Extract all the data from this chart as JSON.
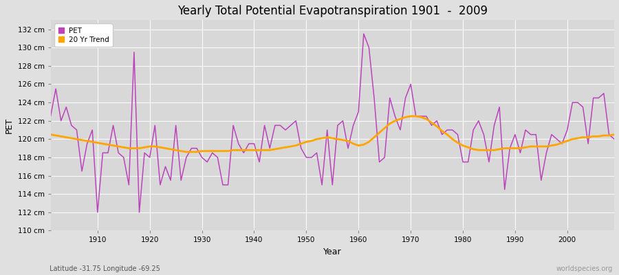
{
  "title": "Yearly Total Potential Evapotranspiration 1901  -  2009",
  "xlabel": "Year",
  "ylabel": "PET",
  "subtitle": "Latitude -31.75 Longitude -69.25",
  "watermark": "worldspecies.org",
  "pet_color": "#BB44BB",
  "trend_color": "#FFA500",
  "fig_bg_color": "#E0E0E0",
  "plot_bg_color": "#D8D8D8",
  "ylim": [
    110,
    133
  ],
  "yticks": [
    110,
    112,
    114,
    116,
    118,
    120,
    122,
    124,
    126,
    128,
    130,
    132
  ],
  "xticks": [
    1910,
    1920,
    1930,
    1940,
    1950,
    1960,
    1970,
    1980,
    1990,
    2000
  ],
  "years": [
    1901,
    1902,
    1903,
    1904,
    1905,
    1906,
    1907,
    1908,
    1909,
    1910,
    1911,
    1912,
    1913,
    1914,
    1915,
    1916,
    1917,
    1918,
    1919,
    1920,
    1921,
    1922,
    1923,
    1924,
    1925,
    1926,
    1927,
    1928,
    1929,
    1930,
    1931,
    1932,
    1933,
    1934,
    1935,
    1936,
    1937,
    1938,
    1939,
    1940,
    1941,
    1942,
    1943,
    1944,
    1945,
    1946,
    1947,
    1948,
    1949,
    1950,
    1951,
    1952,
    1953,
    1954,
    1955,
    1956,
    1957,
    1958,
    1959,
    1960,
    1961,
    1962,
    1963,
    1964,
    1965,
    1966,
    1967,
    1968,
    1969,
    1970,
    1971,
    1972,
    1973,
    1974,
    1975,
    1976,
    1977,
    1978,
    1979,
    1980,
    1981,
    1982,
    1983,
    1984,
    1985,
    1986,
    1987,
    1988,
    1989,
    1990,
    1991,
    1992,
    1993,
    1994,
    1995,
    1996,
    1997,
    1998,
    1999,
    2000,
    2001,
    2002,
    2003,
    2004,
    2005,
    2006,
    2007,
    2008,
    2009
  ],
  "pet": [
    122.5,
    125.5,
    122.0,
    123.5,
    121.5,
    121.0,
    116.5,
    119.5,
    121.0,
    112.0,
    118.5,
    118.5,
    121.5,
    118.5,
    118.0,
    115.0,
    129.5,
    112.0,
    118.5,
    118.0,
    121.5,
    115.0,
    117.0,
    115.5,
    121.5,
    115.5,
    118.0,
    119.0,
    119.0,
    118.0,
    117.5,
    118.5,
    118.0,
    115.0,
    115.0,
    121.5,
    119.5,
    118.5,
    119.5,
    119.5,
    117.5,
    121.5,
    119.0,
    121.5,
    121.5,
    121.0,
    121.5,
    122.0,
    119.0,
    118.0,
    118.0,
    118.5,
    115.0,
    121.0,
    115.0,
    121.5,
    122.0,
    119.0,
    121.5,
    123.0,
    131.5,
    130.0,
    124.5,
    117.5,
    118.0,
    124.5,
    122.5,
    121.0,
    124.5,
    126.0,
    122.5,
    122.5,
    122.5,
    121.5,
    122.0,
    120.5,
    121.0,
    121.0,
    120.5,
    117.5,
    117.5,
    121.0,
    122.0,
    120.5,
    117.5,
    121.5,
    123.5,
    114.5,
    119.0,
    120.5,
    118.5,
    121.0,
    120.5,
    120.5,
    115.5,
    118.5,
    120.5,
    120.0,
    119.5,
    121.0,
    124.0,
    124.0,
    123.5,
    119.5,
    124.5,
    124.5,
    125.0,
    120.5,
    120.0
  ],
  "trend": [
    120.5,
    120.4,
    120.3,
    120.2,
    120.1,
    120.0,
    119.9,
    119.8,
    119.7,
    119.6,
    119.5,
    119.4,
    119.3,
    119.2,
    119.1,
    119.0,
    119.0,
    119.0,
    119.1,
    119.2,
    119.2,
    119.1,
    119.0,
    118.9,
    118.8,
    118.7,
    118.6,
    118.6,
    118.6,
    118.7,
    118.7,
    118.7,
    118.7,
    118.7,
    118.7,
    118.8,
    118.8,
    118.8,
    118.8,
    118.8,
    118.8,
    118.8,
    118.8,
    118.9,
    119.0,
    119.1,
    119.2,
    119.3,
    119.5,
    119.7,
    119.8,
    120.0,
    120.1,
    120.2,
    120.1,
    120.0,
    119.9,
    119.8,
    119.5,
    119.3,
    119.4,
    119.7,
    120.2,
    120.7,
    121.2,
    121.7,
    122.0,
    122.2,
    122.4,
    122.5,
    122.5,
    122.4,
    122.2,
    121.8,
    121.4,
    120.9,
    120.5,
    120.0,
    119.6,
    119.3,
    119.1,
    118.9,
    118.8,
    118.8,
    118.8,
    118.8,
    118.9,
    119.0,
    119.0,
    119.0,
    119.0,
    119.1,
    119.2,
    119.2,
    119.2,
    119.2,
    119.3,
    119.4,
    119.6,
    119.8,
    120.0,
    120.1,
    120.2,
    120.2,
    120.3,
    120.3,
    120.4,
    120.4,
    120.5
  ]
}
